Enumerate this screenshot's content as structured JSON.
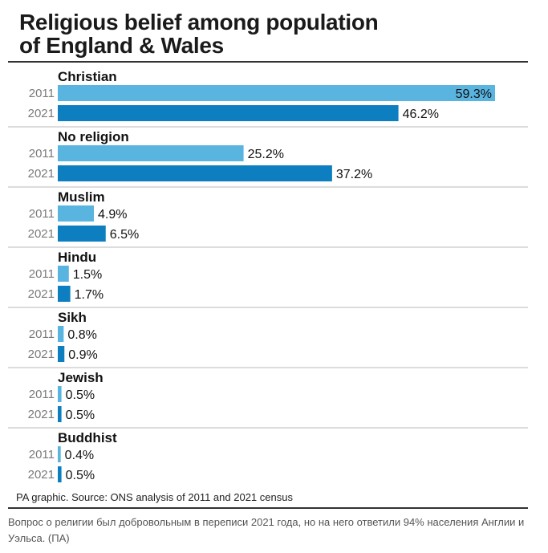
{
  "title_lines": [
    "Religious belief among population",
    "of England & Wales"
  ],
  "source": "PA graphic. Source: ONS analysis of 2011 and 2021 census",
  "caption": "Вопрос о религии был добровольным в переписи 2021 года, но на него ответили 94% населения Англии и Уэльса. (ПА)",
  "colors": {
    "2011": "#5ab4e0",
    "2021": "#0d7fc0",
    "separator": "#d0d0d0"
  },
  "chart_data": {
    "type": "bar",
    "orientation": "horizontal",
    "title": "Religious belief among population of England & Wales",
    "categories": [
      "Christian",
      "No religion",
      "Muslim",
      "Hindu",
      "Sikh",
      "Jewish",
      "Buddhist"
    ],
    "series": [
      {
        "name": "2011",
        "values": [
          59.3,
          25.2,
          4.9,
          1.5,
          0.8,
          0.5,
          0.4
        ],
        "labels": [
          "59.3%",
          "25.2%",
          "4.9%",
          "1.5%",
          "0.8%",
          "0.5%",
          "0.4%"
        ]
      },
      {
        "name": "2021",
        "values": [
          46.2,
          37.2,
          6.5,
          1.7,
          0.9,
          0.5,
          0.5
        ],
        "labels": [
          "46.2%",
          "37.2%",
          "6.5%",
          "1.7%",
          "0.9%",
          "0.5%",
          "0.5%"
        ]
      }
    ],
    "xlim": [
      0,
      59.3
    ],
    "grid": false,
    "legend": "none"
  }
}
